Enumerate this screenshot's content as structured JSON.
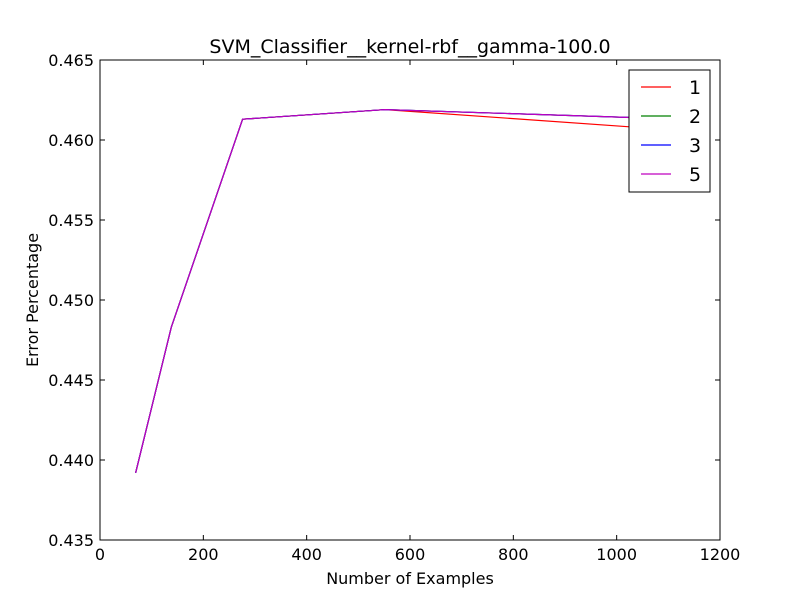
{
  "chart_data": {
    "type": "line",
    "title": "SVM_Classifier__kernel-rbf__gamma-100.0",
    "xlabel": "Number of Examples",
    "ylabel": "Error Percentage",
    "xlim": [
      0,
      1200
    ],
    "ylim": [
      0.435,
      0.465
    ],
    "xticks": [
      0,
      200,
      400,
      600,
      800,
      1000,
      1200
    ],
    "xtick_labels": [
      "0",
      "200",
      "400",
      "600",
      "800",
      "1000",
      "1200"
    ],
    "yticks": [
      0.435,
      0.44,
      0.445,
      0.45,
      0.455,
      0.46,
      0.465
    ],
    "ytick_labels": [
      "0.435",
      "0.440",
      "0.445",
      "0.450",
      "0.455",
      "0.460",
      "0.465"
    ],
    "grid": false,
    "legend_position": "top-right",
    "series": [
      {
        "name": "1",
        "color": "#ff0000",
        "x": [
          69,
          138,
          276,
          552,
          1035,
          1104
        ],
        "y": [
          0.4392,
          0.4483,
          0.4613,
          0.4619,
          0.4608,
          0.4606
        ]
      },
      {
        "name": "2",
        "color": "#008000",
        "x": [
          69,
          138,
          276,
          552,
          1035,
          1104
        ],
        "y": [
          0.4392,
          0.4483,
          0.4613,
          0.4619,
          0.4614,
          0.4613
        ]
      },
      {
        "name": "3",
        "color": "#0000ff",
        "x": [
          69,
          138,
          276,
          552,
          1035,
          1104
        ],
        "y": [
          0.4392,
          0.4483,
          0.4613,
          0.4619,
          0.4614,
          0.4613
        ]
      },
      {
        "name": "5",
        "color": "#bf00bf",
        "x": [
          69,
          138,
          276,
          552,
          1035,
          1104
        ],
        "y": [
          0.4392,
          0.4483,
          0.4613,
          0.4619,
          0.4614,
          0.4613
        ]
      }
    ]
  }
}
